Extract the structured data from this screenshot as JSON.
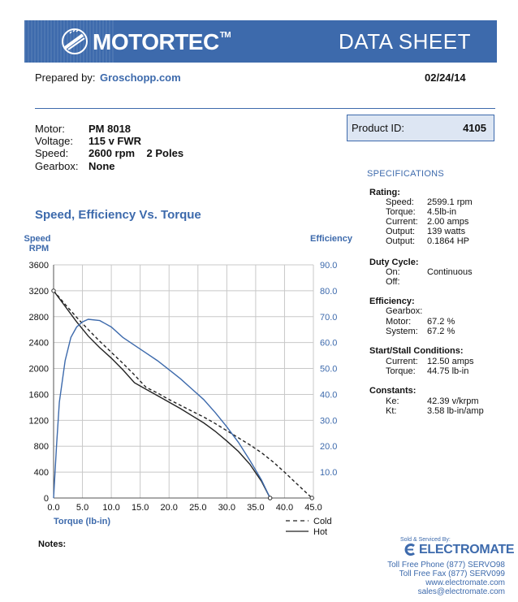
{
  "header": {
    "logo_text": "MOTORTEC",
    "logo_tm": "TM",
    "title": "DATA SHEET",
    "brand_color": "#3d6aac"
  },
  "prepared": {
    "label": "Prepared by:",
    "value": "Groschopp.com",
    "date": "02/24/14"
  },
  "motor_info": [
    {
      "label": "Motor:",
      "value": "PM  8018"
    },
    {
      "label": "Voltage:",
      "value": "115 v FWR"
    },
    {
      "label": "Speed:",
      "value": "2600 rpm    2 Poles"
    },
    {
      "label": "Gearbox:",
      "value": "None"
    }
  ],
  "product": {
    "label": "Product ID:",
    "value": "4105"
  },
  "specifications": {
    "title": "SPECIFICATIONS",
    "rating": {
      "heading": "Rating:",
      "rows": [
        {
          "k": "Speed:",
          "v": "2599.1 rpm"
        },
        {
          "k": "Torque:",
          "v": "4.5lb-in"
        },
        {
          "k": "Current:",
          "v": "2.00 amps"
        },
        {
          "k": "Output:",
          "v": "139 watts"
        },
        {
          "k": "Output:",
          "v": "0.1864 HP"
        }
      ]
    },
    "duty": {
      "heading": "Duty Cycle:",
      "rows": [
        {
          "k": "On:",
          "v": "Continuous"
        },
        {
          "k": "Off:",
          "v": ""
        }
      ]
    },
    "efficiency": {
      "heading": "Efficiency:",
      "rows": [
        {
          "k": "Gearbox:",
          "v": ""
        },
        {
          "k": "Motor:",
          "v": "67.2 %"
        },
        {
          "k": "System:",
          "v": "67.2 %"
        }
      ]
    },
    "stall": {
      "heading": "Start/Stall Conditions:",
      "rows": [
        {
          "k": "Current:",
          "v": "12.50 amps"
        },
        {
          "k": "Torque:",
          "v": "44.75 lb-in"
        }
      ]
    },
    "constants": {
      "heading": "Constants:",
      "rows": [
        {
          "k": "Ke:",
          "v": "42.39 v/krpm"
        },
        {
          "k": "Kt:",
          "v": "3.58 lb-in/amp"
        }
      ]
    }
  },
  "chart_data": {
    "type": "line",
    "title": "Speed, Efficiency Vs. Torque",
    "xlabel": "Torque  (lb-in)",
    "ylabel_left": [
      "Speed",
      "RPM"
    ],
    "ylabel_right": "Efficiency",
    "xlim": [
      0,
      45
    ],
    "ylim_left": [
      0,
      3600
    ],
    "ylim_right": [
      0,
      90
    ],
    "grid": true,
    "legend_position": "bottom-right",
    "x_ticks": [
      "0.0",
      "5.0",
      "10.0",
      "15.0",
      "20.0",
      "25.0",
      "30.0",
      "35.0",
      "40.0",
      "45.0"
    ],
    "y_ticks_left": [
      "0",
      "400",
      "800",
      "1200",
      "1600",
      "2000",
      "2400",
      "2800",
      "3200",
      "3600"
    ],
    "y_ticks_right": [
      "10.0",
      "20.0",
      "30.0",
      "40.0",
      "50.0",
      "60.0",
      "70.0",
      "80.0",
      "90.0"
    ],
    "series": [
      {
        "name": "Cold",
        "axis": "left",
        "style": "dashed",
        "color": "#222222",
        "x": [
          0,
          2,
          4,
          6,
          8,
          10,
          12,
          14,
          16,
          18,
          20,
          22,
          24,
          26,
          28,
          30,
          32,
          34,
          36,
          38,
          40,
          42,
          44.75
        ],
        "y": [
          3200,
          2990,
          2790,
          2600,
          2420,
          2250,
          2080,
          1900,
          1710,
          1620,
          1520,
          1430,
          1340,
          1250,
          1150,
          1040,
          930,
          820,
          700,
          560,
          400,
          230,
          0
        ]
      },
      {
        "name": "Hot",
        "axis": "left",
        "style": "solid",
        "color": "#222222",
        "x": [
          0,
          2,
          4,
          6,
          8,
          10,
          12,
          14,
          16,
          18,
          20,
          22,
          24,
          26,
          28,
          30,
          32,
          34,
          36,
          37.5
        ],
        "y": [
          3200,
          2960,
          2720,
          2500,
          2320,
          2160,
          1980,
          1780,
          1680,
          1580,
          1480,
          1380,
          1270,
          1160,
          1030,
          880,
          720,
          520,
          260,
          0
        ]
      },
      {
        "name": "Efficiency",
        "axis": "right",
        "style": "solid",
        "color": "#3d6aac",
        "x": [
          0,
          0.5,
          1,
          2,
          3,
          4,
          5,
          6,
          8,
          10,
          12,
          14,
          16,
          18,
          20,
          22,
          24,
          26,
          28,
          30,
          32,
          34,
          36,
          37.5
        ],
        "y": [
          0,
          20,
          37,
          53,
          62,
          66,
          68,
          69,
          68.5,
          66,
          62,
          59,
          56,
          53,
          49.5,
          46,
          42,
          38,
          33,
          27.5,
          21.5,
          14.5,
          7,
          0
        ]
      }
    ],
    "legend": [
      {
        "label": "Cold",
        "style": "dashed"
      },
      {
        "label": "Hot",
        "style": "solid"
      }
    ]
  },
  "notes": {
    "label": "Notes:"
  },
  "footer": {
    "sold_by": "Sold & Serviced By:",
    "company": "ELECTROMATE",
    "phone": "Toll Free Phone  (877) SERVO98",
    "fax": "Toll Free Fax  (877) SERV099",
    "web": "www.electromate.com",
    "email": "sales@electromate.com"
  }
}
